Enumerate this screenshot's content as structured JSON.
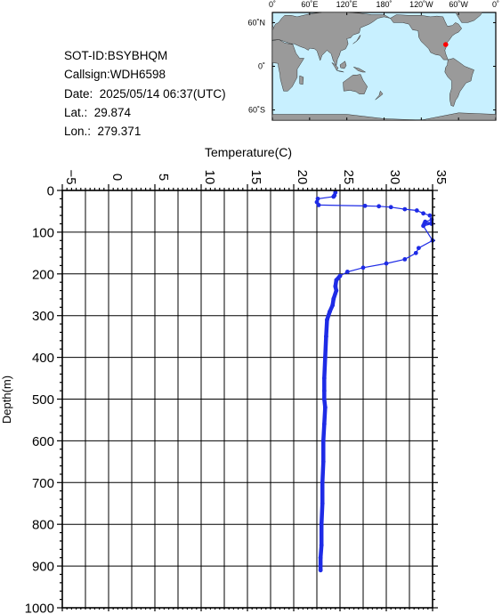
{
  "header": {
    "sot_id": "SOT-ID:BSYBHQM",
    "callsign": "Callsign:WDH6598",
    "date": "Date:  2025/05/14 06:37(UTC)",
    "lat": "Lat.:  29.874",
    "lon": "Lon.:  279.371"
  },
  "map": {
    "top_labels": [
      "0˚",
      "60˚E",
      "120˚E",
      "180˚",
      "120˚W",
      "60˚W",
      "0˚"
    ],
    "left_labels": [
      "60˚N",
      "0˚",
      "60˚S"
    ],
    "ocean_color": "#c8f0ff",
    "land_color": "#9a9a9a",
    "marker": {
      "lat": 29.874,
      "lon": 279.371,
      "color": "#ff0000"
    }
  },
  "chart_data": {
    "type": "line",
    "title": "",
    "xlabel": "Temperature(C)",
    "ylabel": "Depth(m)",
    "xlim": [
      -5,
      35
    ],
    "ylim": [
      1000,
      0
    ],
    "x_axis_position": "top",
    "x_ticks": [
      "-5",
      "0",
      "5",
      "10",
      "15",
      "20",
      "25",
      "30",
      "35"
    ],
    "y_ticks": [
      "0",
      "100",
      "200",
      "300",
      "400",
      "500",
      "600",
      "700",
      "800",
      "900",
      "1000"
    ],
    "grid": true,
    "series_color": "#1e2be6",
    "series": [
      {
        "x": [
          24.5,
          24.4,
          24.3,
          22.6,
          22.5,
          22.7,
          27.7,
          29.2,
          30.5,
          32.0,
          33.3,
          34.0,
          34.7,
          34.9,
          34.2,
          34.9,
          34.1,
          34.9,
          34.0,
          35.0,
          33.5,
          33.2,
          32.0,
          30.0,
          27.5,
          25.8,
          25.0,
          24.6,
          24.5,
          24.6,
          24.3,
          24.2,
          23.9,
          23.6,
          23.5,
          23.4,
          23.3,
          23.3,
          23.3,
          23.4,
          23.3,
          23.2,
          23.2,
          23.1,
          23.1,
          23.0,
          23.0,
          22.9,
          22.9
        ],
        "y": [
          5,
          12,
          15,
          20,
          28,
          35,
          37,
          38,
          40,
          45,
          48,
          55,
          60,
          70,
          75,
          78,
          80,
          80,
          85,
          120,
          138,
          150,
          165,
          175,
          185,
          195,
          205,
          215,
          230,
          240,
          260,
          275,
          290,
          310,
          350,
          400,
          450,
          480,
          500,
          520,
          560,
          600,
          650,
          700,
          750,
          800,
          850,
          880,
          910
        ]
      }
    ]
  }
}
